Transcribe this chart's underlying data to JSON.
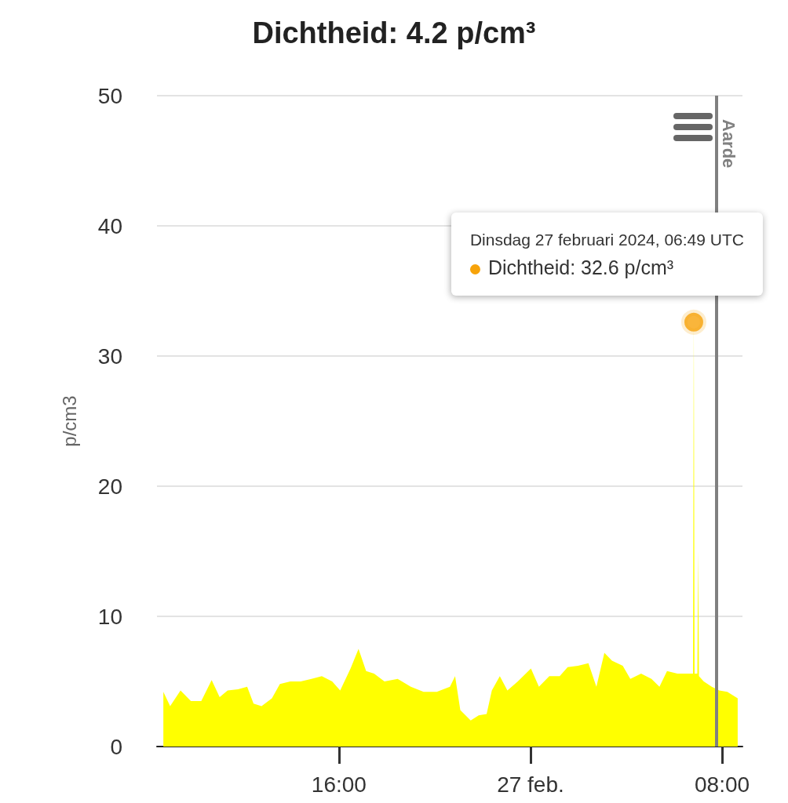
{
  "chart_data": {
    "type": "area",
    "title": "Dichtheid: 4.2 p/cm³",
    "ylabel": "p/cm3",
    "xlim": [
      "2024-02-26T08:24",
      "2024-02-27T08:51"
    ],
    "xticks": [
      {
        "value": "2024-02-26T16:00",
        "label": "16:00"
      },
      {
        "value": "2024-02-27T00:00",
        "label": "27 feb."
      },
      {
        "value": "2024-02-27T08:00",
        "label": "08:00"
      }
    ],
    "ylim": [
      0,
      50
    ],
    "yticks": [
      0,
      10,
      20,
      30,
      40,
      50
    ],
    "grid": "y",
    "ref_lines": [
      {
        "axis": "x",
        "value": "2024-02-27T07:46",
        "label": "Aarde",
        "color": "#808080"
      }
    ],
    "annotations": [
      "Dinsdag 27 februari 2024, 06:49 UTC",
      "Dichtheid: 32.6 p/cm³"
    ],
    "series": [
      {
        "color": "#ffff00",
        "x": [
          "2024-02-26T08:40",
          "2024-02-26T08:57",
          "2024-02-26T09:23",
          "2024-02-26T09:49",
          "2024-02-26T10:15",
          "2024-02-26T10:41",
          "2024-02-26T11:01",
          "2024-02-26T11:21",
          "2024-02-26T11:47",
          "2024-02-26T12:10",
          "2024-02-26T12:26",
          "2024-02-26T12:46",
          "2024-02-26T13:12",
          "2024-02-26T13:32",
          "2024-02-26T13:58",
          "2024-02-26T14:24",
          "2024-02-26T14:51",
          "2024-02-26T15:17",
          "2024-02-26T15:43",
          "2024-02-26T16:03",
          "2024-02-26T16:29",
          "2024-02-26T16:49",
          "2024-02-26T17:08",
          "2024-02-26T17:28",
          "2024-02-26T17:54",
          "2024-02-26T18:27",
          "2024-02-26T19:00",
          "2024-02-26T19:32",
          "2024-02-26T20:05",
          "2024-02-26T20:38",
          "2024-02-26T20:51",
          "2024-02-26T21:04",
          "2024-02-26T21:30",
          "2024-02-26T21:50",
          "2024-02-26T22:10",
          "2024-02-26T22:23",
          "2024-02-26T22:43",
          "2024-02-26T23:02",
          "2024-02-26T23:28",
          "2024-02-27T00:01",
          "2024-02-27T00:21",
          "2024-02-27T00:47",
          "2024-02-27T01:13",
          "2024-02-27T01:33",
          "2024-02-27T01:59",
          "2024-02-27T02:25",
          "2024-02-27T02:45",
          "2024-02-27T03:05",
          "2024-02-27T03:24",
          "2024-02-27T03:51",
          "2024-02-27T04:10",
          "2024-02-27T04:37",
          "2024-02-27T05:03",
          "2024-02-27T05:23",
          "2024-02-27T05:42",
          "2024-02-27T06:08",
          "2024-02-27T06:35",
          "2024-02-27T06:47",
          "2024-02-27T06:49",
          "2024-02-27T06:51",
          "2024-02-27T06:58",
          "2024-02-27T07:00",
          "2024-02-27T07:02",
          "2024-02-27T07:14",
          "2024-02-27T07:34",
          "2024-02-27T07:53",
          "2024-02-27T08:13",
          "2024-02-27T08:39"
        ],
        "values": [
          4.2,
          3.1,
          4.3,
          3.5,
          3.5,
          5.1,
          3.8,
          4.3,
          4.4,
          4.6,
          3.3,
          3.1,
          3.7,
          4.8,
          5.0,
          5.0,
          5.2,
          5.4,
          5.0,
          4.3,
          6.0,
          7.5,
          5.8,
          5.6,
          5.0,
          5.2,
          4.6,
          4.2,
          4.2,
          4.6,
          5.4,
          2.8,
          2.0,
          2.4,
          2.5,
          4.3,
          5.4,
          4.3,
          5.0,
          6.0,
          4.6,
          5.4,
          5.4,
          6.1,
          6.2,
          6.4,
          4.6,
          7.2,
          6.6,
          6.2,
          5.2,
          5.6,
          5.2,
          4.6,
          5.8,
          5.6,
          5.6,
          5.6,
          32.6,
          5.6,
          5.6,
          15,
          5.4,
          5.0,
          4.6,
          4.3,
          4.2,
          3.7
        ]
      },
      {
        "type": "scatter",
        "color": "#f7a30a",
        "marker": "circle",
        "x": [
          "2024-02-27T06:49"
        ],
        "values": [
          32.6
        ]
      }
    ]
  }
}
